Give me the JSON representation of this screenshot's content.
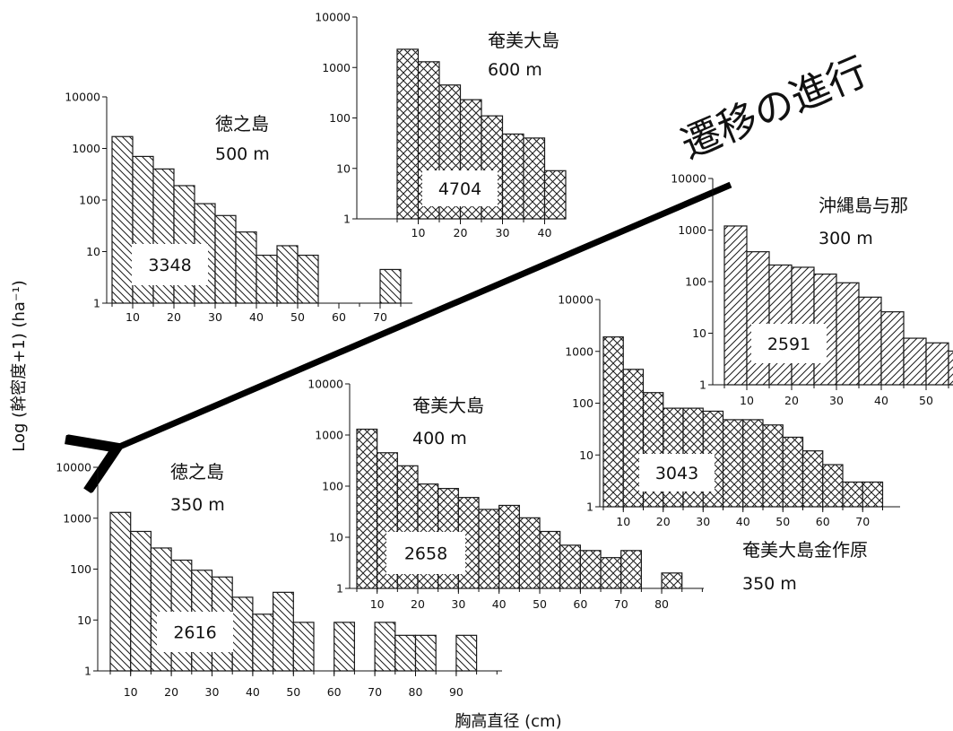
{
  "figure": {
    "ylabel": "Log (幹密度+1) (ha⁻¹)",
    "xlabel": "胸高直径 (cm)",
    "arrow_label": "遷移の進行",
    "arrow_color": "#000000",
    "bar_outline": "#1a1a1a"
  },
  "chart_data": [
    {
      "type": "bar",
      "site": "奄美大島",
      "elevation": "600 m",
      "total_density": "4704",
      "pattern": "crosshatch",
      "scale": "log",
      "ylim": [
        1,
        10000
      ],
      "yticks": [
        "1",
        "10",
        "100",
        "1000",
        "10000"
      ],
      "xticks": [
        "10",
        "20",
        "30",
        "40"
      ],
      "x": [
        5,
        10,
        15,
        20,
        25,
        30,
        35,
        40
      ],
      "values": [
        2300,
        1300,
        450,
        230,
        110,
        48,
        40,
        9
      ]
    },
    {
      "type": "bar",
      "site": "徳之島",
      "elevation": "500 m",
      "total_density": "3348",
      "pattern": "hatch-back",
      "scale": "log",
      "ylim": [
        1,
        10000
      ],
      "yticks": [
        "1",
        "10",
        "100",
        "1000",
        "10000"
      ],
      "xticks": [
        "10",
        "20",
        "30",
        "40",
        "50",
        "60",
        "70"
      ],
      "x": [
        5,
        10,
        15,
        20,
        25,
        30,
        35,
        40,
        45,
        50,
        70
      ],
      "values": [
        1700,
        700,
        400,
        190,
        85,
        50,
        24,
        8.5,
        13,
        8.5,
        4.5
      ]
    },
    {
      "type": "bar",
      "site": "沖縄島与那",
      "elevation": "300 m",
      "total_density": "2591",
      "pattern": "hatch-forward",
      "scale": "log",
      "ylim": [
        1,
        10000
      ],
      "yticks": [
        "1",
        "10",
        "100",
        "1000",
        "10000"
      ],
      "xticks": [
        "10",
        "20",
        "30",
        "40",
        "50"
      ],
      "x": [
        5,
        10,
        15,
        20,
        25,
        30,
        35,
        40,
        45,
        50,
        55
      ],
      "values": [
        1200,
        380,
        210,
        190,
        140,
        95,
        50,
        26,
        8,
        6.5,
        4.5
      ]
    },
    {
      "type": "bar",
      "site": "奄美大島金作原",
      "elevation": "350 m",
      "total_density": "3043",
      "pattern": "crosshatch",
      "scale": "log",
      "ylim": [
        1,
        10000
      ],
      "yticks": [
        "1",
        "10",
        "100",
        "1000",
        "10000"
      ],
      "xticks": [
        "10",
        "20",
        "30",
        "40",
        "50",
        "60",
        "70"
      ],
      "x": [
        5,
        10,
        15,
        20,
        25,
        30,
        35,
        40,
        45,
        50,
        55,
        60,
        65,
        70
      ],
      "values": [
        1900,
        450,
        160,
        80,
        80,
        70,
        48,
        48,
        38,
        22,
        12,
        6.5,
        3,
        3
      ]
    },
    {
      "type": "bar",
      "site": "奄美大島",
      "elevation": "400 m",
      "total_density": "2658",
      "pattern": "crosshatch",
      "scale": "log",
      "ylim": [
        1,
        10000
      ],
      "yticks": [
        "1",
        "10",
        "100",
        "1000",
        "10000"
      ],
      "xticks": [
        "10",
        "20",
        "30",
        "40",
        "50",
        "60",
        "70",
        "80"
      ],
      "x": [
        5,
        10,
        15,
        20,
        25,
        30,
        35,
        40,
        45,
        50,
        55,
        60,
        65,
        70,
        80
      ],
      "values": [
        1300,
        450,
        250,
        110,
        90,
        60,
        35,
        42,
        24,
        13,
        7,
        5.5,
        4,
        5.5,
        2
      ]
    },
    {
      "type": "bar",
      "site": "徳之島",
      "elevation": "350 m",
      "total_density": "2616",
      "pattern": "hatch-back",
      "scale": "log",
      "ylim": [
        1,
        10000
      ],
      "yticks": [
        "1",
        "10",
        "100",
        "1000",
        "10000"
      ],
      "xticks": [
        "10",
        "20",
        "30",
        "40",
        "50",
        "60",
        "70",
        "80",
        "90"
      ],
      "x": [
        5,
        10,
        15,
        20,
        25,
        30,
        35,
        40,
        45,
        50,
        60,
        70,
        75,
        80,
        90
      ],
      "values": [
        1300,
        550,
        260,
        150,
        95,
        70,
        28,
        13,
        35,
        9,
        9,
        9,
        5,
        5,
        5
      ]
    }
  ]
}
